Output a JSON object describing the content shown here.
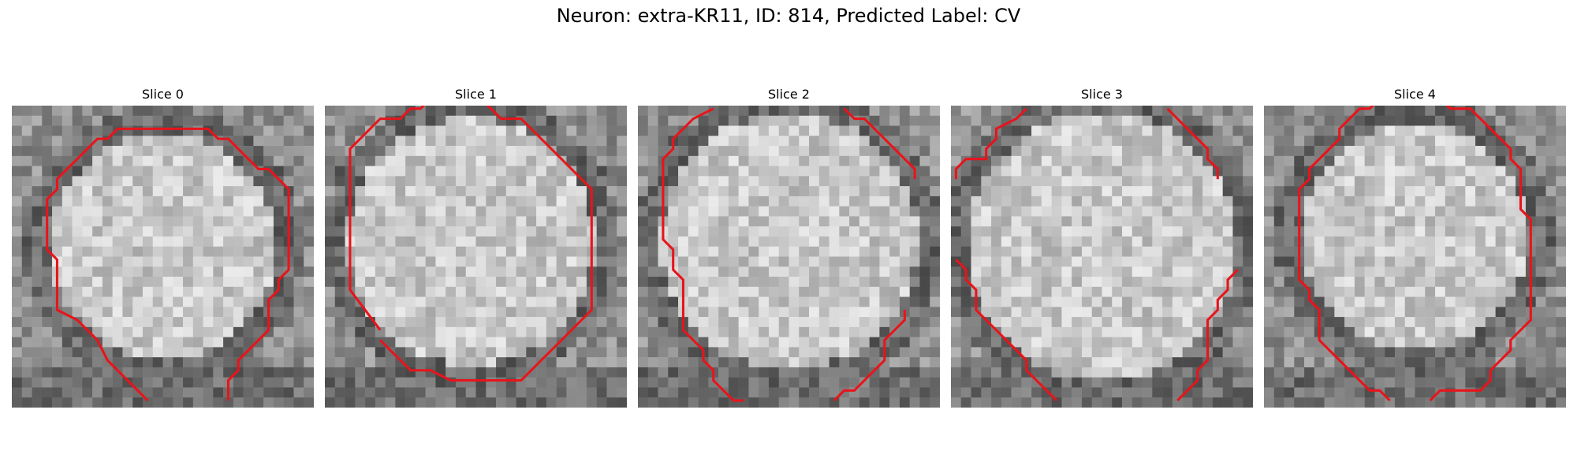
{
  "figure": {
    "title": "Neuron: extra-KR11, ID: 814, Predicted Label: CV"
  },
  "contour_color": "#e8141b",
  "panels": [
    {
      "title": "Slice 0",
      "contour": [
        [
          [
            13.5,
            29.3
          ],
          [
            9.5,
            25.3
          ],
          [
            8.5,
            23.3
          ],
          [
            6.5,
            21.3
          ],
          [
            4.5,
            20.3
          ],
          [
            4.5,
            15.3
          ],
          [
            3.5,
            14.3
          ],
          [
            3.5,
            9.3
          ],
          [
            4.5,
            8.3
          ],
          [
            4.5,
            7.3
          ],
          [
            8.5,
            3.3
          ],
          [
            9.5,
            3.3
          ],
          [
            10.5,
            2.3
          ],
          [
            19.5,
            2.3
          ],
          [
            20.5,
            3.3
          ],
          [
            21.5,
            3.3
          ],
          [
            24.5,
            6.3
          ],
          [
            25.5,
            6.3
          ],
          [
            27.5,
            8.3
          ],
          [
            27.5,
            16.3
          ],
          [
            26.5,
            17.3
          ],
          [
            26.5,
            18.3
          ],
          [
            25.5,
            19.3
          ],
          [
            25.5,
            22.3
          ],
          [
            22.5,
            25.3
          ],
          [
            22.5,
            26.3
          ],
          [
            21.5,
            27.3
          ],
          [
            21.5,
            29.3
          ]
        ]
      ]
    },
    {
      "title": "Slice 1",
      "contour": [
        [
          [
            5.5,
            22.3
          ],
          [
            2.5,
            18.3
          ],
          [
            2.5,
            4.3
          ],
          [
            5.5,
            1.3
          ],
          [
            7.5,
            1.3
          ],
          [
            8.5,
            0.3
          ],
          [
            9.5,
            0.3
          ],
          [
            10.5,
            -0.7
          ],
          [
            15.5,
            -0.7
          ],
          [
            17.5,
            1.3
          ],
          [
            19.5,
            1.3
          ],
          [
            26.5,
            8.3
          ],
          [
            26.5,
            20.3
          ],
          [
            19.5,
            27.3
          ],
          [
            12.5,
            27.3
          ],
          [
            10.5,
            26.3
          ],
          [
            8.5,
            26.3
          ],
          [
            5.5,
            23.3
          ]
        ]
      ]
    },
    {
      "title": "Slice 2",
      "contour": [
        [
          [
            7.5,
            0.3
          ],
          [
            5.5,
            1.3
          ],
          [
            3.5,
            3.3
          ],
          [
            3.5,
            4.3
          ],
          [
            2.5,
            5.3
          ],
          [
            2.5,
            13.3
          ],
          [
            3.5,
            14.3
          ],
          [
            3.5,
            16.3
          ],
          [
            4.5,
            17.3
          ],
          [
            4.5,
            22.3
          ],
          [
            6.5,
            24.3
          ],
          [
            6.5,
            25.3
          ],
          [
            7.5,
            26.3
          ],
          [
            7.5,
            27.3
          ],
          [
            9.5,
            29.3
          ],
          [
            10.5,
            29.3
          ]
        ],
        [
          [
            20.5,
            0.3
          ],
          [
            21.5,
            1.3
          ],
          [
            22.5,
            1.3
          ],
          [
            27.5,
            6.3
          ],
          [
            27.5,
            7.3
          ]
        ],
        [
          [
            26.5,
            20.3
          ],
          [
            26.5,
            21.3
          ],
          [
            24.5,
            23.3
          ],
          [
            24.5,
            25.3
          ],
          [
            21.5,
            28.3
          ],
          [
            20.5,
            28.3
          ],
          [
            19.5,
            29.3
          ]
        ]
      ]
    },
    {
      "title": "Slice 3",
      "contour": [
        [
          [
            7.5,
            0.3
          ],
          [
            6.5,
            1.3
          ],
          [
            4.5,
            2.3
          ],
          [
            4.5,
            3.3
          ],
          [
            3.5,
            4.3
          ],
          [
            3.5,
            5.3
          ],
          [
            1.5,
            5.3
          ],
          [
            0.5,
            6.3
          ],
          [
            0.5,
            7.3
          ]
        ],
        [
          [
            21.5,
            0.3
          ],
          [
            22.5,
            1.3
          ],
          [
            24.5,
            3.3
          ],
          [
            25.5,
            4.3
          ],
          [
            25.5,
            5.3
          ],
          [
            26.5,
            6.3
          ],
          [
            26.5,
            7.3
          ]
        ],
        [
          [
            0.5,
            15.3
          ],
          [
            1.5,
            16.3
          ],
          [
            1.5,
            17.3
          ],
          [
            2.5,
            18.3
          ],
          [
            2.5,
            20.3
          ],
          [
            5.5,
            23.3
          ],
          [
            6.5,
            24.3
          ],
          [
            7.5,
            25.3
          ],
          [
            7.5,
            26.3
          ],
          [
            9.5,
            28.3
          ],
          [
            10.5,
            29.3
          ]
        ],
        [
          [
            28.5,
            16.3
          ],
          [
            27.5,
            17.3
          ],
          [
            27.5,
            18.3
          ],
          [
            26.5,
            19.3
          ],
          [
            26.5,
            20.3
          ],
          [
            25.5,
            21.3
          ],
          [
            25.5,
            25.3
          ],
          [
            24.5,
            26.3
          ],
          [
            24.5,
            27.3
          ],
          [
            22.5,
            29.3
          ]
        ]
      ]
    },
    {
      "title": "Slice 4",
      "contour": [
        [
          [
            12.5,
            29.3
          ],
          [
            11.5,
            28.3
          ],
          [
            10.5,
            28.3
          ],
          [
            5.5,
            23.3
          ],
          [
            5.5,
            20.3
          ],
          [
            4.5,
            19.3
          ],
          [
            4.5,
            18.3
          ],
          [
            3.5,
            17.3
          ],
          [
            3.5,
            8.3
          ],
          [
            4.5,
            7.3
          ],
          [
            4.5,
            6.3
          ],
          [
            7.5,
            3.3
          ],
          [
            7.5,
            2.3
          ],
          [
            9.5,
            0.3
          ],
          [
            10.5,
            0.3
          ],
          [
            11.5,
            -0.7
          ],
          [
            17.5,
            -0.7
          ],
          [
            18.5,
            0.3
          ],
          [
            20.5,
            0.3
          ],
          [
            22.5,
            2.3
          ],
          [
            23.5,
            3.3
          ],
          [
            24.5,
            4.3
          ],
          [
            24.5,
            5.3
          ],
          [
            25.5,
            6.3
          ],
          [
            25.5,
            10.3
          ],
          [
            26.5,
            11.3
          ],
          [
            26.5,
            21.3
          ],
          [
            25.5,
            22.3
          ],
          [
            24.5,
            23.3
          ],
          [
            24.5,
            24.3
          ],
          [
            22.5,
            26.3
          ],
          [
            22.5,
            27.3
          ],
          [
            21.5,
            28.3
          ],
          [
            17.5,
            28.3
          ],
          [
            16.5,
            29.3
          ]
        ]
      ]
    }
  ]
}
